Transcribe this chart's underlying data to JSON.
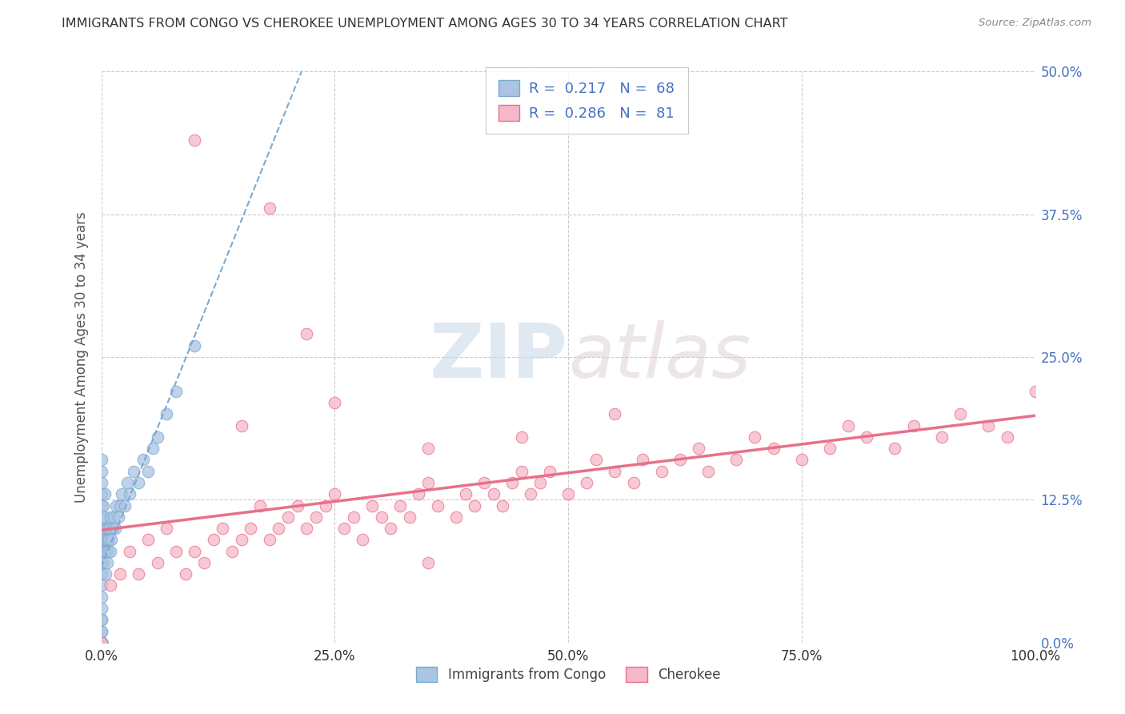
{
  "title": "IMMIGRANTS FROM CONGO VS CHEROKEE UNEMPLOYMENT AMONG AGES 30 TO 34 YEARS CORRELATION CHART",
  "source": "Source: ZipAtlas.com",
  "ylabel": "Unemployment Among Ages 30 to 34 years",
  "xlim": [
    0,
    1.0
  ],
  "ylim": [
    0,
    0.5
  ],
  "xticks": [
    0.0,
    0.25,
    0.5,
    0.75,
    1.0
  ],
  "xtick_labels": [
    "0.0%",
    "25.0%",
    "50.0%",
    "75.0%",
    "100.0%"
  ],
  "yticks": [
    0.0,
    0.125,
    0.25,
    0.375,
    0.5
  ],
  "ytick_labels": [
    "0.0%",
    "12.5%",
    "25.0%",
    "37.5%",
    "50.0%"
  ],
  "watermark_zip": "ZIP",
  "watermark_atlas": "atlas",
  "legend1_label": "Immigrants from Congo",
  "legend2_label": "Cherokee",
  "R1": 0.217,
  "N1": 68,
  "R2": 0.286,
  "N2": 81,
  "color1": "#aac4e2",
  "color2": "#f5b8c8",
  "trendline1_color": "#7aaad0",
  "trendline2_color": "#e8708a",
  "background_color": "#ffffff",
  "congo_x": [
    0.0,
    0.0,
    0.0,
    0.0,
    0.0,
    0.0,
    0.0,
    0.0,
    0.0,
    0.0,
    0.0,
    0.0,
    0.0,
    0.0,
    0.0,
    0.0,
    0.0,
    0.0,
    0.0,
    0.0,
    0.0,
    0.0,
    0.0,
    0.0,
    0.0,
    0.0,
    0.0,
    0.0,
    0.0,
    0.0,
    0.002,
    0.002,
    0.002,
    0.003,
    0.003,
    0.004,
    0.004,
    0.005,
    0.005,
    0.005,
    0.006,
    0.006,
    0.007,
    0.007,
    0.008,
    0.009,
    0.01,
    0.01,
    0.011,
    0.012,
    0.013,
    0.015,
    0.016,
    0.018,
    0.02,
    0.022,
    0.025,
    0.028,
    0.03,
    0.035,
    0.04,
    0.045,
    0.05,
    0.055,
    0.06,
    0.07,
    0.08,
    0.1
  ],
  "congo_y": [
    0.0,
    0.0,
    0.0,
    0.0,
    0.0,
    0.0,
    0.0,
    0.0,
    0.0,
    0.01,
    0.01,
    0.02,
    0.02,
    0.03,
    0.04,
    0.05,
    0.06,
    0.07,
    0.07,
    0.08,
    0.09,
    0.09,
    0.1,
    0.1,
    0.11,
    0.12,
    0.13,
    0.14,
    0.15,
    0.16,
    0.07,
    0.09,
    0.12,
    0.08,
    0.11,
    0.09,
    0.13,
    0.06,
    0.08,
    0.1,
    0.07,
    0.09,
    0.08,
    0.1,
    0.09,
    0.1,
    0.08,
    0.11,
    0.09,
    0.1,
    0.11,
    0.1,
    0.12,
    0.11,
    0.12,
    0.13,
    0.12,
    0.14,
    0.13,
    0.15,
    0.14,
    0.16,
    0.15,
    0.17,
    0.18,
    0.2,
    0.22,
    0.26
  ],
  "cherokee_x": [
    0.0,
    0.01,
    0.02,
    0.03,
    0.04,
    0.05,
    0.06,
    0.07,
    0.08,
    0.09,
    0.1,
    0.11,
    0.12,
    0.13,
    0.14,
    0.15,
    0.16,
    0.17,
    0.18,
    0.19,
    0.2,
    0.21,
    0.22,
    0.23,
    0.24,
    0.25,
    0.26,
    0.27,
    0.28,
    0.29,
    0.3,
    0.31,
    0.32,
    0.33,
    0.34,
    0.35,
    0.36,
    0.38,
    0.39,
    0.4,
    0.41,
    0.42,
    0.43,
    0.44,
    0.45,
    0.46,
    0.47,
    0.48,
    0.5,
    0.52,
    0.53,
    0.55,
    0.57,
    0.58,
    0.6,
    0.62,
    0.64,
    0.65,
    0.68,
    0.7,
    0.72,
    0.75,
    0.78,
    0.8,
    0.82,
    0.85,
    0.87,
    0.9,
    0.92,
    0.95,
    0.97,
    1.0,
    0.15,
    0.25,
    0.35,
    0.45,
    0.55,
    0.35,
    0.22,
    0.18,
    0.1
  ],
  "cherokee_y": [
    0.0,
    0.05,
    0.06,
    0.08,
    0.06,
    0.09,
    0.07,
    0.1,
    0.08,
    0.06,
    0.08,
    0.07,
    0.09,
    0.1,
    0.08,
    0.09,
    0.1,
    0.12,
    0.09,
    0.1,
    0.11,
    0.12,
    0.1,
    0.11,
    0.12,
    0.13,
    0.1,
    0.11,
    0.09,
    0.12,
    0.11,
    0.1,
    0.12,
    0.11,
    0.13,
    0.14,
    0.12,
    0.11,
    0.13,
    0.12,
    0.14,
    0.13,
    0.12,
    0.14,
    0.15,
    0.13,
    0.14,
    0.15,
    0.13,
    0.14,
    0.16,
    0.15,
    0.14,
    0.16,
    0.15,
    0.16,
    0.17,
    0.15,
    0.16,
    0.18,
    0.17,
    0.16,
    0.17,
    0.19,
    0.18,
    0.17,
    0.19,
    0.18,
    0.2,
    0.19,
    0.18,
    0.22,
    0.19,
    0.21,
    0.17,
    0.18,
    0.2,
    0.07,
    0.27,
    0.38,
    0.44
  ]
}
